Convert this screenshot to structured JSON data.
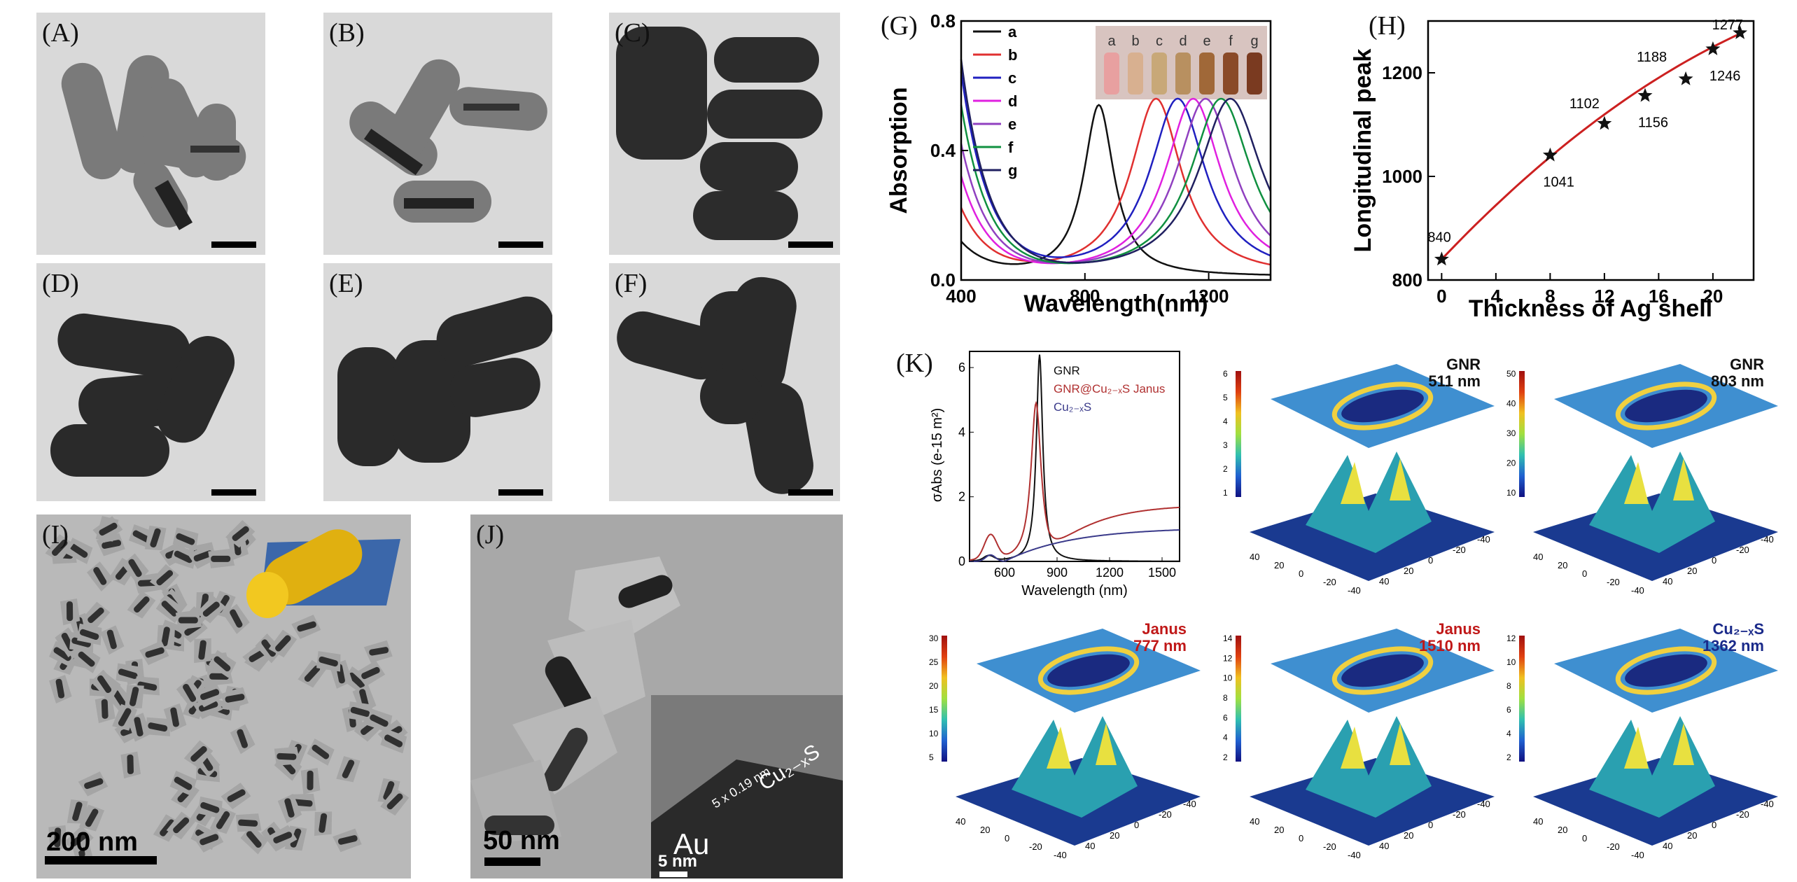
{
  "labels": {
    "A": "(A)",
    "B": "(B)",
    "C": "(C)",
    "D": "(D)",
    "E": "(E)",
    "F": "(F)",
    "G": "(G)",
    "H": "(H)",
    "I": "(I)",
    "J": "(J)",
    "K": "(K)"
  },
  "scale_I": "200 nm",
  "scale_J": "50 nm",
  "scale_J_inset": "5 nm",
  "inset_J_au": "Au",
  "inset_J_cu": "Cu₂₋ₓS",
  "inset_J_spacing": "5 x 0.19 nm",
  "colors": {
    "a": "#111111",
    "b": "#e03030",
    "c": "#2020c0",
    "d": "#e020e0",
    "e": "#9040c0",
    "f": "#109040",
    "g": "#202060",
    "fit": "#cc2020"
  },
  "chart_data": [
    {
      "type": "line",
      "panel": "G",
      "xlabel": "Wavelength(nm)",
      "ylabel": "Absorption",
      "xlim": [
        400,
        1400
      ],
      "ylim": [
        0.0,
        0.8
      ],
      "xticks": [
        "400",
        "800",
        "1200"
      ],
      "yticks": [
        "0.0",
        "0.4",
        "0.8"
      ],
      "legend_position": "top-left",
      "vial_labels": [
        "a",
        "b",
        "c",
        "d",
        "e",
        "f",
        "g"
      ],
      "series": [
        {
          "name": "a",
          "peak": 845,
          "width": 60,
          "amp": 0.53,
          "base": 0.1
        },
        {
          "name": "b",
          "peak": 1030,
          "width": 100,
          "amp": 0.55,
          "base": 0.2
        },
        {
          "name": "c",
          "peak": 1100,
          "width": 110,
          "amp": 0.55,
          "base": 0.62
        },
        {
          "name": "d",
          "peak": 1150,
          "width": 110,
          "amp": 0.55,
          "base": 0.3
        },
        {
          "name": "e",
          "peak": 1190,
          "width": 115,
          "amp": 0.55,
          "base": 0.4
        },
        {
          "name": "f",
          "peak": 1240,
          "width": 120,
          "amp": 0.55,
          "base": 0.52
        },
        {
          "name": "g",
          "peak": 1270,
          "width": 125,
          "amp": 0.55,
          "base": 0.66
        }
      ]
    },
    {
      "type": "scatter",
      "panel": "H",
      "xlabel": "Thickness of Ag shell",
      "ylabel": "Longitudinal peak",
      "xlim": [
        -1,
        23
      ],
      "ylim": [
        800,
        1300
      ],
      "xticks": [
        "0",
        "4",
        "8",
        "12",
        "16",
        "20"
      ],
      "yticks": [
        "800",
        "1000",
        "1200"
      ],
      "points": [
        {
          "x": 0,
          "y": 840,
          "label": "840"
        },
        {
          "x": 8,
          "y": 1041,
          "label": "1041"
        },
        {
          "x": 12,
          "y": 1102,
          "label": "1102"
        },
        {
          "x": 15,
          "y": 1156,
          "label": "1156"
        },
        {
          "x": 18,
          "y": 1188,
          "label": "1188"
        },
        {
          "x": 20,
          "y": 1246,
          "label": "1246"
        },
        {
          "x": 22,
          "y": 1277,
          "label": "1277"
        }
      ]
    },
    {
      "type": "line",
      "panel": "K",
      "xlabel": "Wavelength (nm)",
      "ylabel": "σAbs (e-15 m²)",
      "xlim": [
        400,
        1600
      ],
      "ylim": [
        0,
        6.5
      ],
      "xticks": [
        "600",
        "900",
        "1200",
        "1500"
      ],
      "yticks": [
        "0",
        "2",
        "4",
        "6"
      ],
      "legend_position": "top-right",
      "series": [
        {
          "name": "GNR",
          "color": "#111111"
        },
        {
          "name": "GNR@Cu₂₋ₓS Janus",
          "color": "#b03030"
        },
        {
          "name": "Cu₂₋ₓS",
          "color": "#3a3a8a"
        }
      ]
    }
  ],
  "maps": [
    {
      "id": "gnr511",
      "title1": "GNR",
      "title2": "511 nm",
      "color": "#111111",
      "ticks": [
        "6",
        "5",
        "4",
        "3",
        "2",
        "1"
      ]
    },
    {
      "id": "gnr803",
      "title1": "GNR",
      "title2": "803 nm",
      "color": "#111111",
      "ticks": [
        "50",
        "40",
        "30",
        "20",
        "10"
      ]
    },
    {
      "id": "janus777",
      "title1": "Janus",
      "title2": "777 nm",
      "color": "#c01818",
      "ticks": [
        "30",
        "25",
        "20",
        "15",
        "10",
        "5"
      ]
    },
    {
      "id": "janus1510",
      "title1": "Janus",
      "title2": "1510 nm",
      "color": "#c01818",
      "ticks": [
        "14",
        "12",
        "10",
        "8",
        "6",
        "4",
        "2"
      ]
    },
    {
      "id": "cu1362",
      "title1": "Cu₂₋ₓS",
      "title2": "1362 nm",
      "color": "#1a2a8a",
      "ticks": [
        "12",
        "10",
        "8",
        "6",
        "4",
        "2"
      ]
    }
  ],
  "map_axis_ticks": [
    "40",
    "20",
    "0",
    "-20",
    "-40"
  ]
}
